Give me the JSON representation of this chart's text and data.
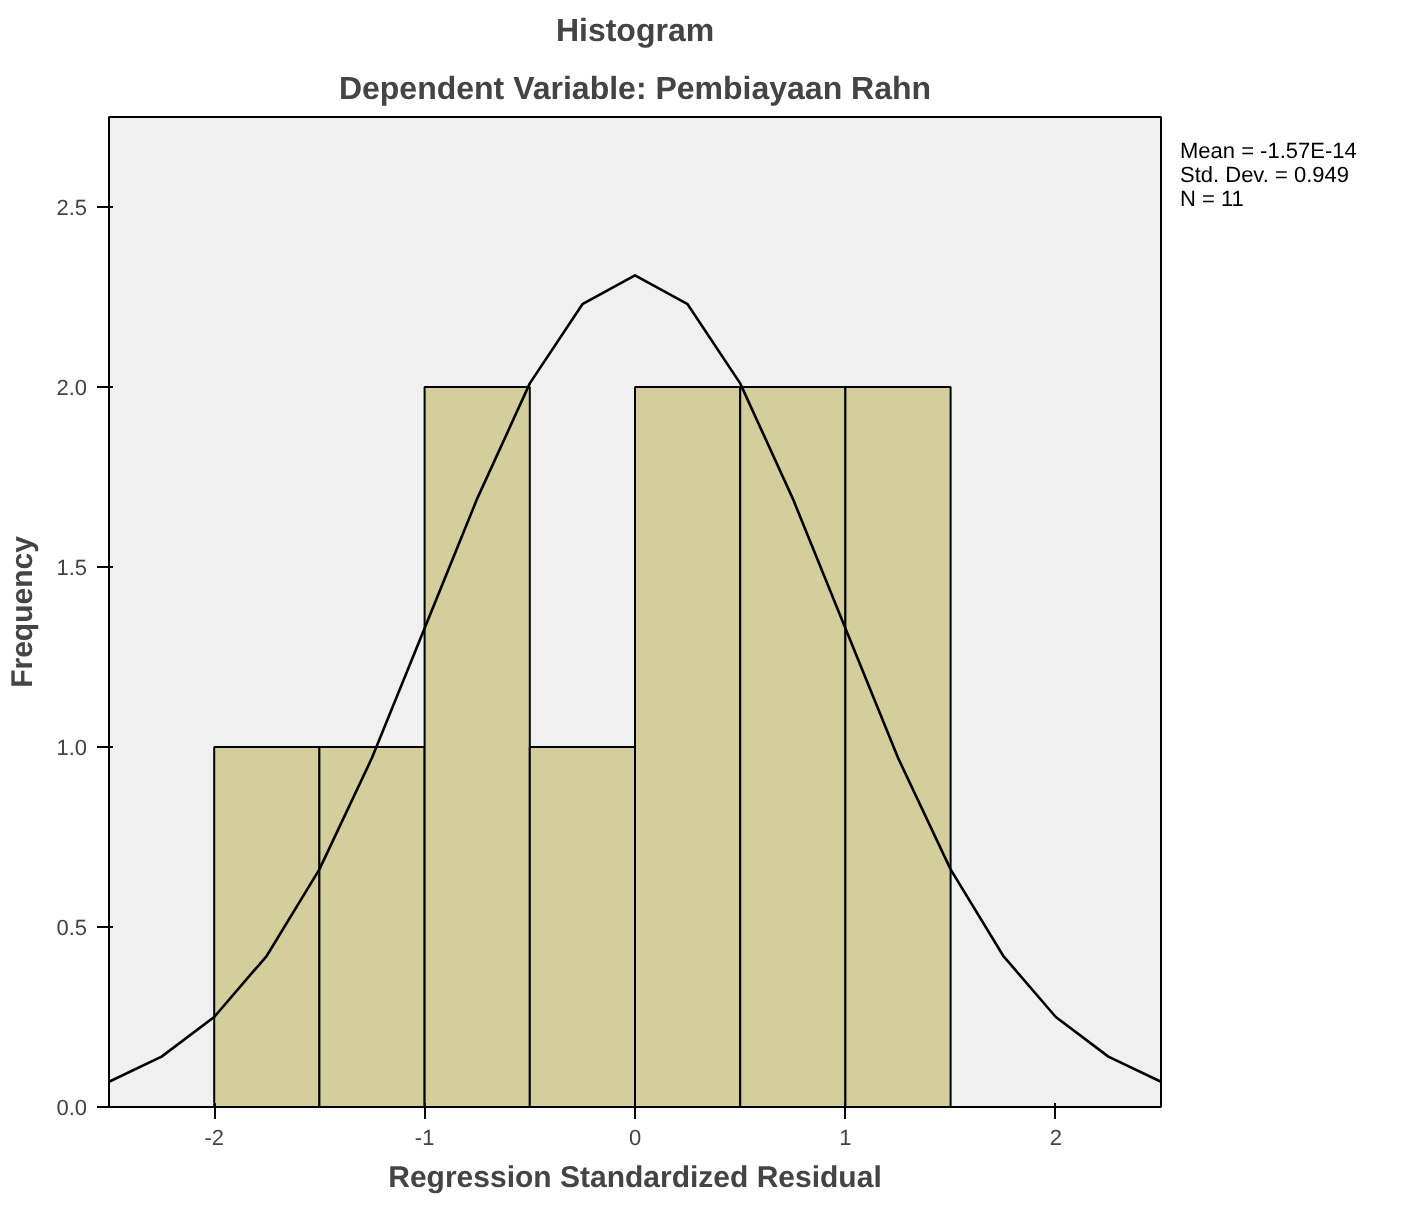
{
  "chart_data": {
    "type": "histogram",
    "title": "Histogram",
    "subtitle": "Dependent Variable: Pembiayaan Rahn",
    "xlabel": "Regression Standardized Residual",
    "ylabel": "Frequency",
    "bins": [
      -2,
      -1.5,
      -1,
      -0.5,
      0,
      0.5,
      1,
      1.5
    ],
    "values": [
      1,
      1,
      2,
      1,
      2,
      2,
      2
    ],
    "color": "#d3ce9c",
    "series": [
      {
        "type": "line",
        "color": "#000000",
        "x": [
          -2.5,
          -2.25,
          -2,
          -1.75,
          -1.5,
          -1.25,
          -1,
          -0.75,
          -0.5,
          -0.25,
          0,
          0.25,
          0.5,
          0.75,
          1,
          1.25,
          1.5,
          1.75,
          2,
          2.25,
          2.5
        ],
        "values": [
          0.07,
          0.14,
          0.25,
          0.42,
          0.66,
          0.97,
          1.33,
          1.69,
          2.01,
          2.23,
          2.31,
          2.23,
          2.01,
          1.69,
          1.33,
          0.97,
          0.66,
          0.42,
          0.25,
          0.14,
          0.07
        ]
      }
    ],
    "xlim": [
      -2.5,
      2.5
    ],
    "xticks": [
      -2,
      -1,
      0,
      1,
      2
    ],
    "ylim": [
      0,
      2.75
    ],
    "yticks": [
      {
        "value": 0,
        "label": "0.0"
      },
      {
        "value": 0.5,
        "label": "0.5"
      },
      {
        "value": 1,
        "label": "1.0"
      },
      {
        "value": 1.5,
        "label": "1.5"
      },
      {
        "value": 2,
        "label": "2.0"
      },
      {
        "value": 2.5,
        "label": "2.5"
      }
    ],
    "grid": false,
    "annotations": [
      "Mean = -1.57E-14",
      "Std. Dev. = 0.949",
      "N = 11"
    ]
  }
}
